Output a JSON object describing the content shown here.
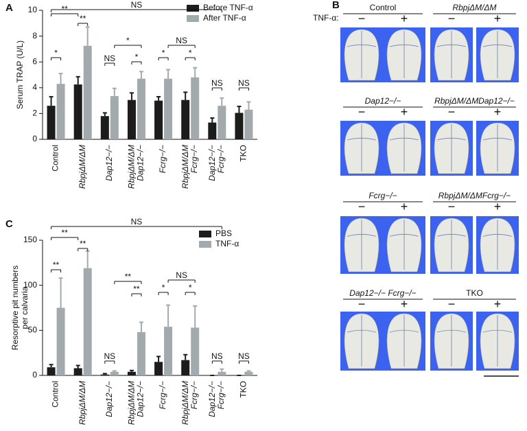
{
  "chart_data": [
    {
      "type": "bar",
      "panel": "A",
      "ylabel": [
        "Serum TRAP (U/L)"
      ],
      "categories": [
        [
          "Control"
        ],
        [
          "RbpjΔM/ΔM"
        ],
        [
          "Dap12−/−"
        ],
        [
          "RbpjΔM/ΔM",
          "Dap12−/−"
        ],
        [
          "Fcrg−/−"
        ],
        [
          "RbpjΔM/ΔM",
          "Fcrg−/−"
        ],
        [
          "Dap12−/−",
          "Fcrg−/−"
        ],
        [
          "TKO"
        ]
      ],
      "series": [
        {
          "name": "Before TNF-α",
          "color": "#1c1c1c",
          "values": [
            2.6,
            4.25,
            1.8,
            3.05,
            3.0,
            3.05,
            1.3,
            2.05
          ],
          "errors": [
            0.7,
            0.6,
            0.25,
            0.55,
            0.3,
            0.6,
            0.35,
            0.5
          ]
        },
        {
          "name": "After TNF-α",
          "color": "#a3aaae",
          "values": [
            4.3,
            7.25,
            3.35,
            4.7,
            4.7,
            4.8,
            2.6,
            2.3
          ],
          "errors": [
            0.8,
            1.45,
            0.6,
            0.55,
            0.7,
            0.75,
            0.6,
            0.6
          ]
        }
      ],
      "ylim": [
        0,
        10
      ],
      "yticks": [
        0,
        2,
        4,
        6,
        8,
        10
      ],
      "annotations": [
        "NS",
        "**",
        "**",
        "*",
        "NS",
        "*",
        "*",
        "NS",
        "*",
        "*",
        "NS",
        "NS"
      ]
    },
    {
      "type": "bar",
      "panel": "C",
      "ylabel": [
        "Resorptive pit numbers",
        "per calvaria"
      ],
      "categories": [
        [
          "Control"
        ],
        [
          "RbpjΔM/ΔM"
        ],
        [
          "Dap12−/−"
        ],
        [
          "RbpjΔM/ΔM",
          "Dap12−/−"
        ],
        [
          "Fcrg−/−"
        ],
        [
          "RbpjΔM/ΔM",
          "Fcrg−/−"
        ],
        [
          "Dap12−/−",
          "Fcrg−/−"
        ],
        [
          "TKO"
        ]
      ],
      "series": [
        {
          "name": "PBS",
          "color": "#1c1c1c",
          "values": [
            9,
            8,
            1,
            4,
            15,
            17,
            0,
            0
          ],
          "errors": [
            3,
            3,
            1,
            1.5,
            6,
            6,
            0,
            0
          ]
        },
        {
          "name": "TNF-α",
          "color": "#a3aaae",
          "values": [
            75,
            119,
            4,
            48,
            54,
            53,
            4,
            4
          ],
          "errors": [
            33,
            19,
            1,
            11,
            24,
            24,
            3,
            1
          ]
        }
      ],
      "ylim": [
        0,
        150
      ],
      "yticks": [
        0,
        50,
        100,
        150
      ],
      "annotations": [
        "NS",
        "**",
        "**",
        "**",
        "NS",
        "**",
        "**",
        "NS",
        "*",
        "*",
        "NS",
        "NS"
      ]
    }
  ],
  "panel_b": {
    "label": "B",
    "tnf_label": "TNF-α:",
    "groups": [
      {
        "title": "Control",
        "minus": "−",
        "plus": "+"
      },
      {
        "title": "RbpjΔM/ΔM",
        "minus": "−",
        "plus": "+"
      },
      {
        "title": "Dap12−/−",
        "minus": "−",
        "plus": "+"
      },
      {
        "title": "RbpjΔM/ΔMDap12−/−",
        "minus": "−",
        "plus": "+"
      },
      {
        "title": "Fcrg−/−",
        "minus": "−",
        "plus": "+"
      },
      {
        "title": "RbpjΔM/ΔMFcrg−/−",
        "minus": "−",
        "plus": "+"
      },
      {
        "title": "Dap12−/− Fcrg−/−",
        "minus": "−",
        "plus": "+"
      },
      {
        "title": "TKO",
        "minus": "−",
        "plus": "+"
      }
    ]
  }
}
